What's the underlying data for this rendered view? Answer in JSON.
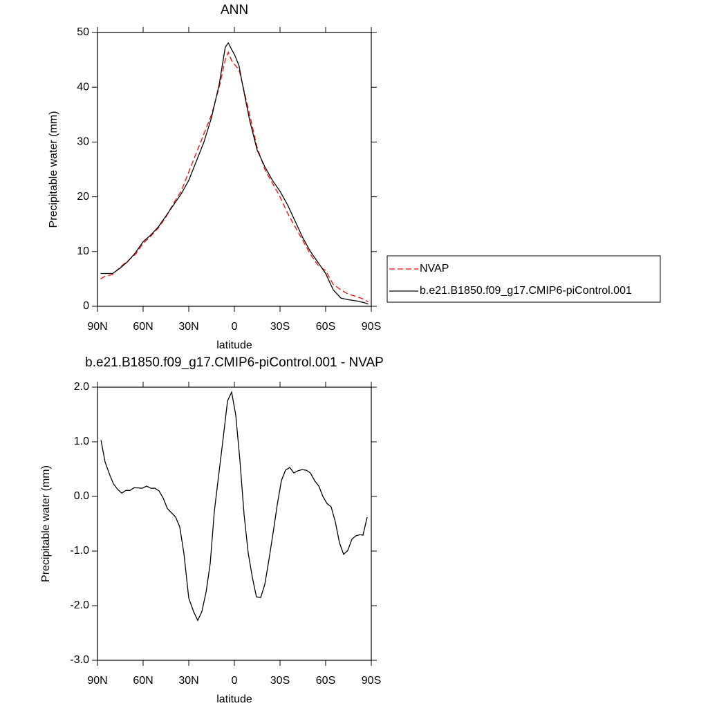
{
  "chart_data": [
    {
      "type": "line",
      "title": "ANN",
      "xlabel": "latitude",
      "ylabel": "Precipitable water (mm)",
      "x": [
        88,
        85,
        80,
        75,
        70,
        65,
        60,
        55,
        50,
        45,
        40,
        35,
        30,
        25,
        20,
        15,
        10,
        6,
        4,
        2,
        0,
        -3,
        -5,
        -10,
        -15,
        -20,
        -25,
        -30,
        -35,
        -40,
        -45,
        -50,
        -55,
        -60,
        -65,
        -70,
        -75,
        -80,
        -85,
        -88
      ],
      "series": [
        {
          "name": "NVAP",
          "color": "#ff0000",
          "style": "dashed",
          "values": [
            5.0,
            5.5,
            5.8,
            7.2,
            8.3,
            9.5,
            11.5,
            12.8,
            14.3,
            16.3,
            18.8,
            21,
            24.5,
            28,
            31.5,
            35,
            40,
            45,
            46.4,
            45,
            44.2,
            43.2,
            41,
            35,
            29,
            25,
            22.5,
            20,
            17,
            14.5,
            12,
            9.5,
            7.5,
            6.5,
            4,
            3,
            2.2,
            1.8,
            1.3,
            0.8
          ]
        },
        {
          "name": "b.e21.B1850.f09_g17.CMIP6-piControl.001",
          "color": "#000000",
          "style": "solid",
          "values": [
            6.0,
            6.0,
            6.0,
            7,
            8.2,
            9.8,
            11.8,
            13,
            14.5,
            16.5,
            18.5,
            20.5,
            23,
            26.5,
            30,
            34.5,
            40.5,
            47.3,
            48.1,
            47,
            46,
            44,
            41,
            34,
            28.5,
            25.5,
            23,
            21,
            18.5,
            15.5,
            12.5,
            10,
            8,
            6,
            3,
            1.5,
            1.2,
            1.0,
            0.7,
            0.4
          ]
        }
      ],
      "xlim": [
        90,
        -90
      ],
      "xticks": [
        {
          "value": 90,
          "label": "90N"
        },
        {
          "value": 60,
          "label": "60N"
        },
        {
          "value": 30,
          "label": "30N"
        },
        0,
        {
          "value": -30,
          "label": "30S"
        },
        {
          "value": -60,
          "label": "60S"
        },
        {
          "value": -90,
          "label": "90S"
        }
      ],
      "ylim": [
        0,
        50
      ],
      "yticks": [
        0,
        10,
        20,
        30,
        40,
        50
      ],
      "legend": "right"
    },
    {
      "type": "line",
      "title": "b.e21.B1850.f09_g17.CMIP6-piControl.001 - NVAP",
      "xlabel": "latitude",
      "ylabel": "Precipitable water (mm)",
      "x": [
        87.7,
        85,
        82.3,
        79.5,
        76.8,
        74,
        71.4,
        68.6,
        65.9,
        60.5,
        57.7,
        55,
        52.3,
        49.5,
        46.8,
        44.1,
        38.6,
        35.9,
        33.2,
        30,
        26.8,
        24.1,
        21.4,
        18.6,
        15.9,
        13.2,
        10.5,
        7.7,
        4.5,
        1.8,
        -0.9,
        -3.6,
        -6.4,
        -9.1,
        -11.8,
        -14.5,
        -17.3,
        -20,
        -22.7,
        -25.5,
        -28.2,
        -30.9,
        -33.6,
        -36.4,
        -39.1,
        -41.8,
        -44.5,
        -47.3,
        -50,
        -52.7,
        -55.5,
        -58.2,
        -60.9,
        -63.6,
        -66.4,
        -69.1,
        -71.8,
        -74.5,
        -77.3,
        -80,
        -82.7,
        -84.5,
        -87.3
      ],
      "values": [
        1.03,
        0.63,
        0.42,
        0.23,
        0.13,
        0.06,
        0.11,
        0.11,
        0.16,
        0.15,
        0.19,
        0.15,
        0.15,
        0.1,
        -0.03,
        -0.22,
        -0.38,
        -0.56,
        -1.04,
        -1.86,
        -2.11,
        -2.27,
        -2.11,
        -1.75,
        -1.23,
        -0.28,
        0.35,
        0.99,
        1.75,
        1.91,
        1.49,
        0.67,
        -0.34,
        -1.04,
        -1.48,
        -1.84,
        -1.85,
        -1.61,
        -1.16,
        -0.66,
        -0.15,
        0.29,
        0.48,
        0.53,
        0.43,
        0.47,
        0.49,
        0.48,
        0.43,
        0.29,
        0.19,
        0.0,
        -0.13,
        -0.19,
        -0.47,
        -0.85,
        -1.06,
        -0.99,
        -0.78,
        -0.72,
        -0.7,
        -0.71,
        -0.38
      ],
      "color": "#000000",
      "xlim": [
        90,
        -90
      ],
      "xticks": [
        {
          "value": 90,
          "label": "90N"
        },
        {
          "value": 60,
          "label": "60N"
        },
        {
          "value": 30,
          "label": "30N"
        },
        0,
        {
          "value": -30,
          "label": "30S"
        },
        {
          "value": -60,
          "label": "60S"
        },
        {
          "value": -90,
          "label": "90S"
        }
      ],
      "ylim": [
        -3,
        2
      ],
      "yticks": [
        {
          "value": -3,
          "label": "-3.0"
        },
        {
          "value": -2,
          "label": "-2.0"
        },
        {
          "value": -1,
          "label": "-1.0"
        },
        {
          "value": 0,
          "label": "0.0"
        },
        {
          "value": 1,
          "label": "1.0"
        },
        {
          "value": 2,
          "label": "2.0"
        }
      ]
    }
  ]
}
